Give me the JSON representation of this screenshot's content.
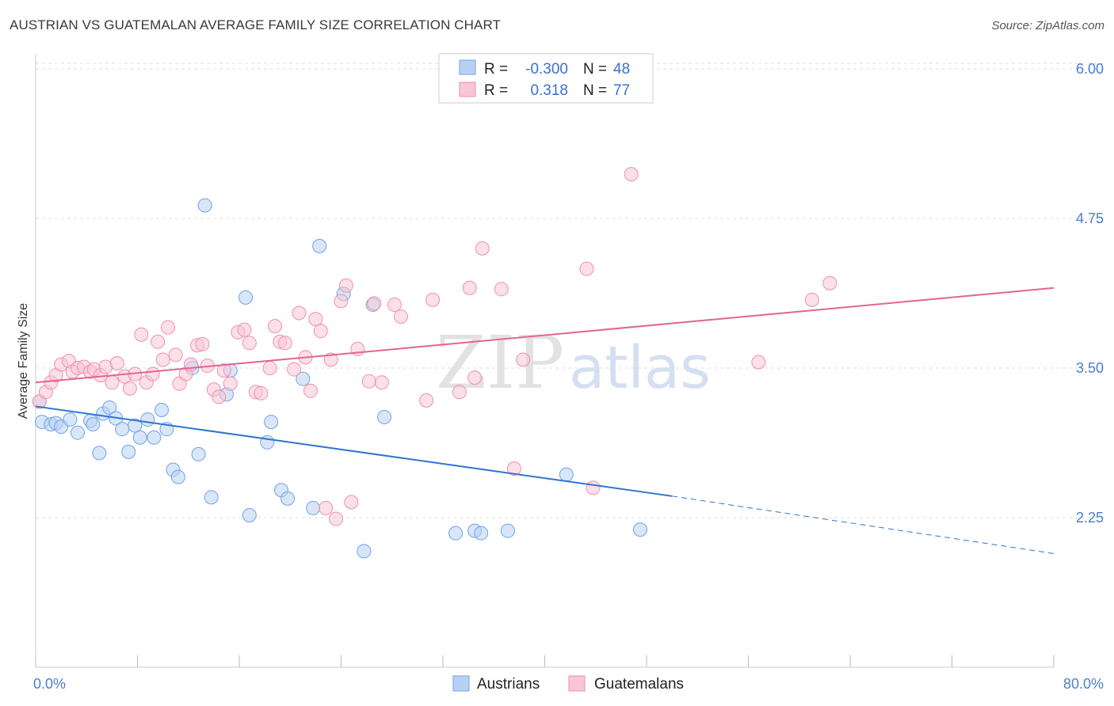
{
  "title": "AUSTRIAN VS GUATEMALAN AVERAGE FAMILY SIZE CORRELATION CHART",
  "source": "Source: ZipAtlas.com",
  "watermark": {
    "zip": "ZIP",
    "atlas": "atlas"
  },
  "colors": {
    "austrians": "#6fa3e8",
    "austrians_fill": "#b8d1f3",
    "austrians_line": "#2f74d0",
    "guatemalans": "#ef8fae",
    "guatemalans_fill": "#f8c6d5",
    "guatemalans_line": "#e26590",
    "tick": "#4a7fcf",
    "grid": "#dddddd"
  },
  "legend": {
    "rows": [
      {
        "r_label": "R =",
        "r_value": "-0.300",
        "n_label": "N =",
        "n_value": "48"
      },
      {
        "r_label": "R =",
        "r_value": "0.318",
        "n_label": "N =",
        "n_value": "77"
      }
    ]
  },
  "bottom_legend": [
    "Austrians",
    "Guatemalans"
  ],
  "chart_data": {
    "type": "scatter",
    "title": "AUSTRIAN VS GUATEMALAN AVERAGE FAMILY SIZE CORRELATION CHART",
    "xlabel": "",
    "ylabel": "Average Family Size",
    "xlim": [
      0,
      80
    ],
    "ylim": [
      1.0,
      6.1
    ],
    "x_tick_labels": [
      "0.0%",
      "80.0%"
    ],
    "y_ticks": [
      2.25,
      3.5,
      4.75,
      6.0
    ],
    "y_tick_labels": [
      "2.25",
      "3.50",
      "4.75",
      "6.00"
    ],
    "grid": true,
    "legend_position": "top-center",
    "series": [
      {
        "name": "Austrians",
        "r": -0.3,
        "n": 48,
        "trend": {
          "x0": 0,
          "y0": 3.18,
          "x1": 50,
          "y1": 2.43,
          "dashed_to_x": 80,
          "dashed_to_y": 1.95
        },
        "points": [
          [
            0.5,
            3.05
          ],
          [
            1.2,
            3.03
          ],
          [
            1.6,
            3.04
          ],
          [
            2.0,
            3.01
          ],
          [
            2.7,
            3.07
          ],
          [
            3.3,
            2.96
          ],
          [
            4.3,
            3.06
          ],
          [
            4.5,
            3.03
          ],
          [
            5.0,
            2.79
          ],
          [
            5.3,
            3.12
          ],
          [
            5.8,
            3.17
          ],
          [
            6.3,
            3.08
          ],
          [
            6.8,
            2.99
          ],
          [
            7.3,
            2.8
          ],
          [
            7.8,
            3.02
          ],
          [
            8.2,
            2.92
          ],
          [
            8.8,
            3.07
          ],
          [
            9.3,
            2.92
          ],
          [
            9.9,
            3.15
          ],
          [
            10.3,
            2.99
          ],
          [
            10.8,
            2.65
          ],
          [
            11.2,
            2.59
          ],
          [
            12.3,
            3.5
          ],
          [
            12.8,
            2.78
          ],
          [
            13.3,
            4.86
          ],
          [
            13.8,
            2.42
          ],
          [
            15.3,
            3.48
          ],
          [
            15.0,
            3.28
          ],
          [
            16.5,
            4.09
          ],
          [
            16.8,
            2.27
          ],
          [
            18.2,
            2.88
          ],
          [
            18.5,
            3.05
          ],
          [
            19.3,
            2.48
          ],
          [
            19.8,
            2.41
          ],
          [
            21.0,
            3.41
          ],
          [
            21.8,
            2.33
          ],
          [
            22.3,
            4.52
          ],
          [
            24.2,
            4.12
          ],
          [
            25.8,
            1.97
          ],
          [
            26.5,
            4.03
          ],
          [
            27.4,
            3.09
          ],
          [
            33.0,
            2.12
          ],
          [
            34.5,
            2.14
          ],
          [
            35.0,
            2.12
          ],
          [
            37.1,
            2.14
          ],
          [
            41.7,
            2.61
          ],
          [
            47.5,
            2.15
          ],
          [
            0.3,
            3.22
          ]
        ]
      },
      {
        "name": "Guatemalans",
        "r": 0.318,
        "n": 77,
        "trend": {
          "x0": 0,
          "y0": 3.38,
          "x1": 80,
          "y1": 4.17
        },
        "points": [
          [
            0.3,
            3.22
          ],
          [
            0.8,
            3.3
          ],
          [
            1.2,
            3.38
          ],
          [
            1.6,
            3.44
          ],
          [
            2.0,
            3.53
          ],
          [
            2.6,
            3.56
          ],
          [
            2.9,
            3.47
          ],
          [
            3.3,
            3.5
          ],
          [
            3.8,
            3.51
          ],
          [
            4.3,
            3.47
          ],
          [
            4.6,
            3.49
          ],
          [
            5.1,
            3.44
          ],
          [
            5.5,
            3.51
          ],
          [
            6.0,
            3.38
          ],
          [
            6.4,
            3.54
          ],
          [
            7.0,
            3.43
          ],
          [
            7.4,
            3.33
          ],
          [
            7.8,
            3.45
          ],
          [
            8.3,
            3.78
          ],
          [
            8.7,
            3.38
          ],
          [
            9.2,
            3.45
          ],
          [
            9.6,
            3.72
          ],
          [
            10.0,
            3.57
          ],
          [
            10.4,
            3.84
          ],
          [
            11.0,
            3.61
          ],
          [
            11.3,
            3.37
          ],
          [
            11.8,
            3.45
          ],
          [
            12.2,
            3.53
          ],
          [
            12.7,
            3.69
          ],
          [
            13.1,
            3.7
          ],
          [
            13.5,
            3.52
          ],
          [
            14.0,
            3.32
          ],
          [
            14.4,
            3.26
          ],
          [
            14.8,
            3.48
          ],
          [
            15.3,
            3.37
          ],
          [
            15.9,
            3.8
          ],
          [
            16.4,
            3.82
          ],
          [
            16.8,
            3.71
          ],
          [
            17.3,
            3.3
          ],
          [
            17.7,
            3.29
          ],
          [
            18.4,
            3.5
          ],
          [
            18.8,
            3.85
          ],
          [
            19.2,
            3.72
          ],
          [
            19.6,
            3.71
          ],
          [
            20.3,
            3.49
          ],
          [
            20.7,
            3.96
          ],
          [
            21.2,
            3.59
          ],
          [
            21.6,
            3.31
          ],
          [
            22.0,
            3.91
          ],
          [
            22.4,
            3.81
          ],
          [
            22.8,
            2.33
          ],
          [
            23.2,
            3.57
          ],
          [
            23.6,
            2.24
          ],
          [
            24.0,
            4.06
          ],
          [
            24.4,
            4.19
          ],
          [
            24.8,
            2.38
          ],
          [
            25.3,
            3.66
          ],
          [
            26.2,
            3.39
          ],
          [
            26.6,
            4.04
          ],
          [
            27.2,
            3.38
          ],
          [
            28.2,
            4.03
          ],
          [
            28.7,
            3.93
          ],
          [
            30.7,
            3.23
          ],
          [
            31.2,
            4.07
          ],
          [
            33.3,
            3.3
          ],
          [
            34.1,
            4.17
          ],
          [
            34.5,
            3.42
          ],
          [
            35.1,
            4.5
          ],
          [
            36.6,
            4.16
          ],
          [
            37.6,
            2.66
          ],
          [
            38.3,
            3.57
          ],
          [
            43.3,
            4.33
          ],
          [
            43.8,
            2.5
          ],
          [
            46.8,
            5.12
          ],
          [
            56.8,
            3.55
          ],
          [
            61.0,
            4.07
          ],
          [
            62.4,
            4.21
          ]
        ]
      }
    ]
  }
}
